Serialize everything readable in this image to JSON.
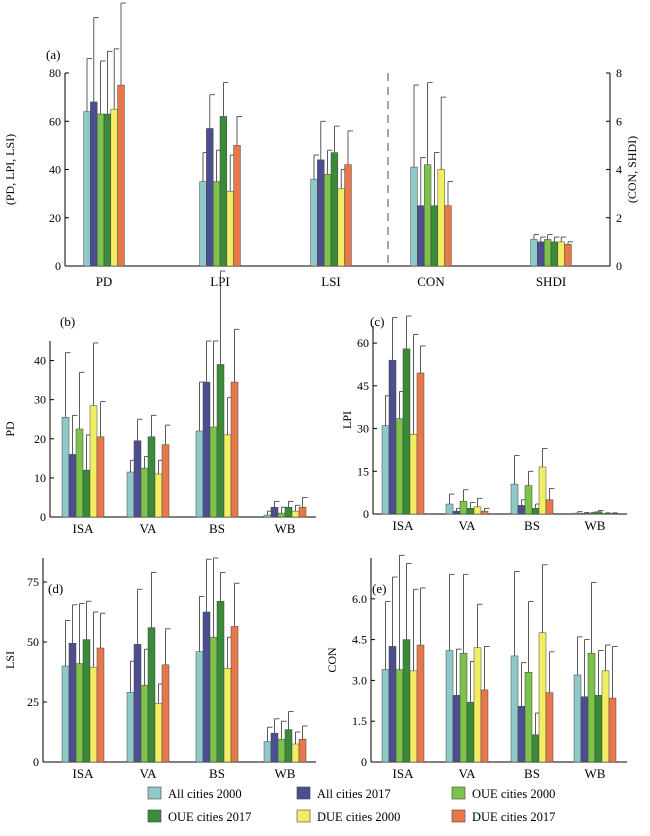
{
  "colors": [
    "#8fc8c9",
    "#4d4e8f",
    "#7cc24b",
    "#3b8a3a",
    "#f2ee64",
    "#e8784a"
  ],
  "legend": [
    "All cities 2000",
    "All cities 2017",
    "OUE cities 2000",
    "OUE cities 2017",
    "DUE cities 2000",
    "DUE cities 2017"
  ],
  "chart_data": [
    {
      "panel": "(a)",
      "type": "bar",
      "ylabel": "(PD, LPI, LSI)",
      "ylabel_right": "(CON, SHDI)",
      "ylim": [
        0,
        80
      ],
      "ylim_right": [
        0,
        8
      ],
      "yticks": [
        "0",
        "20",
        "40",
        "60",
        "80"
      ],
      "yticks_right": [
        "0",
        "2",
        "4",
        "6",
        "8"
      ],
      "categories": [
        "PD",
        "LPI",
        "LSI",
        "CON",
        "SHDI"
      ],
      "right_axis_categories": [
        "CON",
        "SHDI"
      ],
      "dashed_separator": true,
      "series": [
        {
          "values": [
            64,
            35,
            36,
            4.1,
            1.1
          ],
          "errors": [
            22,
            12,
            10,
            3.4,
            0.2
          ]
        },
        {
          "values": [
            68,
            57,
            44,
            2.5,
            1.0
          ],
          "errors": [
            35,
            14,
            16,
            2.0,
            0.2
          ]
        },
        {
          "values": [
            63,
            35,
            38,
            4.2,
            1.1
          ],
          "errors": [
            22,
            13,
            10,
            3.4,
            0.2
          ]
        },
        {
          "values": [
            63,
            62,
            47,
            2.5,
            1.0
          ],
          "errors": [
            26,
            14,
            11,
            2.2,
            0.2
          ]
        },
        {
          "values": [
            65,
            31,
            32,
            4.0,
            1.0
          ],
          "errors": [
            25,
            15,
            8,
            3.0,
            0.2
          ]
        },
        {
          "values": [
            75,
            50,
            42,
            2.5,
            0.9
          ],
          "errors": [
            34,
            12,
            14,
            1.0,
            0.1
          ]
        }
      ]
    },
    {
      "panel": "(b)",
      "type": "bar",
      "ylabel": "PD",
      "ylim": [
        0,
        45
      ],
      "yticks": [
        "0",
        "10",
        "20",
        "30",
        "40"
      ],
      "categories": [
        "ISA",
        "VA",
        "BS",
        "WB"
      ],
      "series": [
        {
          "values": [
            25.5,
            11.5,
            22,
            0.5
          ],
          "errors": [
            16.5,
            3,
            12.5,
            1
          ]
        },
        {
          "values": [
            16,
            19.5,
            34.5,
            2.5
          ],
          "errors": [
            10,
            5.5,
            10.5,
            1.5
          ]
        },
        {
          "values": [
            22.5,
            12.5,
            23,
            1
          ],
          "errors": [
            14.5,
            3,
            22,
            1.5
          ]
        },
        {
          "values": [
            12,
            20.5,
            39,
            2.5
          ],
          "errors": [
            9,
            5.5,
            25,
            1.5
          ]
        },
        {
          "values": [
            28.5,
            11,
            21,
            1.5
          ],
          "errors": [
            16,
            3.5,
            9.5,
            1.5
          ]
        },
        {
          "values": [
            20.5,
            18.5,
            34.5,
            2.5
          ],
          "errors": [
            9,
            5,
            13.5,
            2.5
          ]
        }
      ]
    },
    {
      "panel": "(c)",
      "type": "bar",
      "ylabel": "LPI",
      "ylim": [
        0,
        66
      ],
      "yticks": [
        "0",
        "15",
        "30",
        "45",
        "60"
      ],
      "categories": [
        "ISA",
        "VA",
        "BS",
        "WB"
      ],
      "series": [
        {
          "values": [
            31,
            3.5,
            10.5,
            0.3
          ],
          "errors": [
            10.5,
            3.5,
            10,
            0.5
          ]
        },
        {
          "values": [
            54,
            1,
            3,
            0.2
          ],
          "errors": [
            15,
            1,
            2,
            0.3
          ]
        },
        {
          "values": [
            33.5,
            4.5,
            10,
            0.3
          ],
          "errors": [
            9.5,
            4,
            5,
            0.3
          ]
        },
        {
          "values": [
            58,
            2,
            2,
            0.8
          ],
          "errors": [
            11.5,
            2,
            1.5,
            0.4
          ]
        },
        {
          "values": [
            28,
            2.5,
            16.5,
            0.2
          ],
          "errors": [
            35,
            3,
            6.5,
            0.2
          ]
        },
        {
          "values": [
            49.5,
            1,
            5,
            0.2
          ],
          "errors": [
            9.5,
            1,
            4,
            0.2
          ]
        }
      ]
    },
    {
      "panel": "(d)",
      "type": "bar",
      "ylabel": "LSI",
      "ylim": [
        0,
        85
      ],
      "yticks": [
        "0",
        "25",
        "50",
        "75"
      ],
      "categories": [
        "ISA",
        "VA",
        "BS",
        "WB"
      ],
      "series": [
        {
          "values": [
            40,
            29,
            46,
            8.5
          ],
          "errors": [
            19,
            13,
            23,
            6
          ]
        },
        {
          "values": [
            49.5,
            49,
            62.5,
            12
          ],
          "errors": [
            16,
            23,
            22,
            6
          ]
        },
        {
          "values": [
            41,
            32,
            52,
            9.5
          ],
          "errors": [
            25,
            15,
            33,
            7.5
          ]
        },
        {
          "values": [
            51,
            56,
            67,
            13.5
          ],
          "errors": [
            16,
            23,
            12,
            7.5
          ]
        },
        {
          "values": [
            39.5,
            24.5,
            39,
            7.5
          ],
          "errors": [
            23,
            8,
            13,
            5
          ]
        },
        {
          "values": [
            47.5,
            40.5,
            56.5,
            9.5
          ],
          "errors": [
            14.5,
            15,
            18,
            5.5
          ]
        }
      ]
    },
    {
      "panel": "(e)",
      "type": "bar",
      "ylabel": "CON",
      "ylim": [
        0,
        7.5
      ],
      "yticks": [
        "0",
        "1.5",
        "3.0",
        "4.5",
        "6.0"
      ],
      "categories": [
        "ISA",
        "VA",
        "BS",
        "WB"
      ],
      "series": [
        {
          "values": [
            3.4,
            4.1,
            3.9,
            3.2
          ],
          "errors": [
            2.5,
            2.8,
            3.1,
            1.4
          ]
        },
        {
          "values": [
            4.25,
            2.45,
            2.05,
            2.4
          ],
          "errors": [
            2.55,
            1.7,
            1.6,
            2.1
          ]
        },
        {
          "values": [
            3.4,
            4.0,
            3.3,
            4.0
          ],
          "errors": [
            4.2,
            2.9,
            2.6,
            2.6
          ]
        },
        {
          "values": [
            4.5,
            2.2,
            1.0,
            2.45
          ],
          "errors": [
            2.8,
            1.5,
            0.8,
            1.65
          ]
        },
        {
          "values": [
            3.35,
            4.2,
            4.75,
            3.35
          ],
          "errors": [
            3.0,
            1.6,
            2.5,
            0.95
          ]
        },
        {
          "values": [
            4.3,
            2.65,
            2.55,
            2.35
          ],
          "errors": [
            2.1,
            1.6,
            1.5,
            1.9
          ]
        }
      ]
    }
  ]
}
